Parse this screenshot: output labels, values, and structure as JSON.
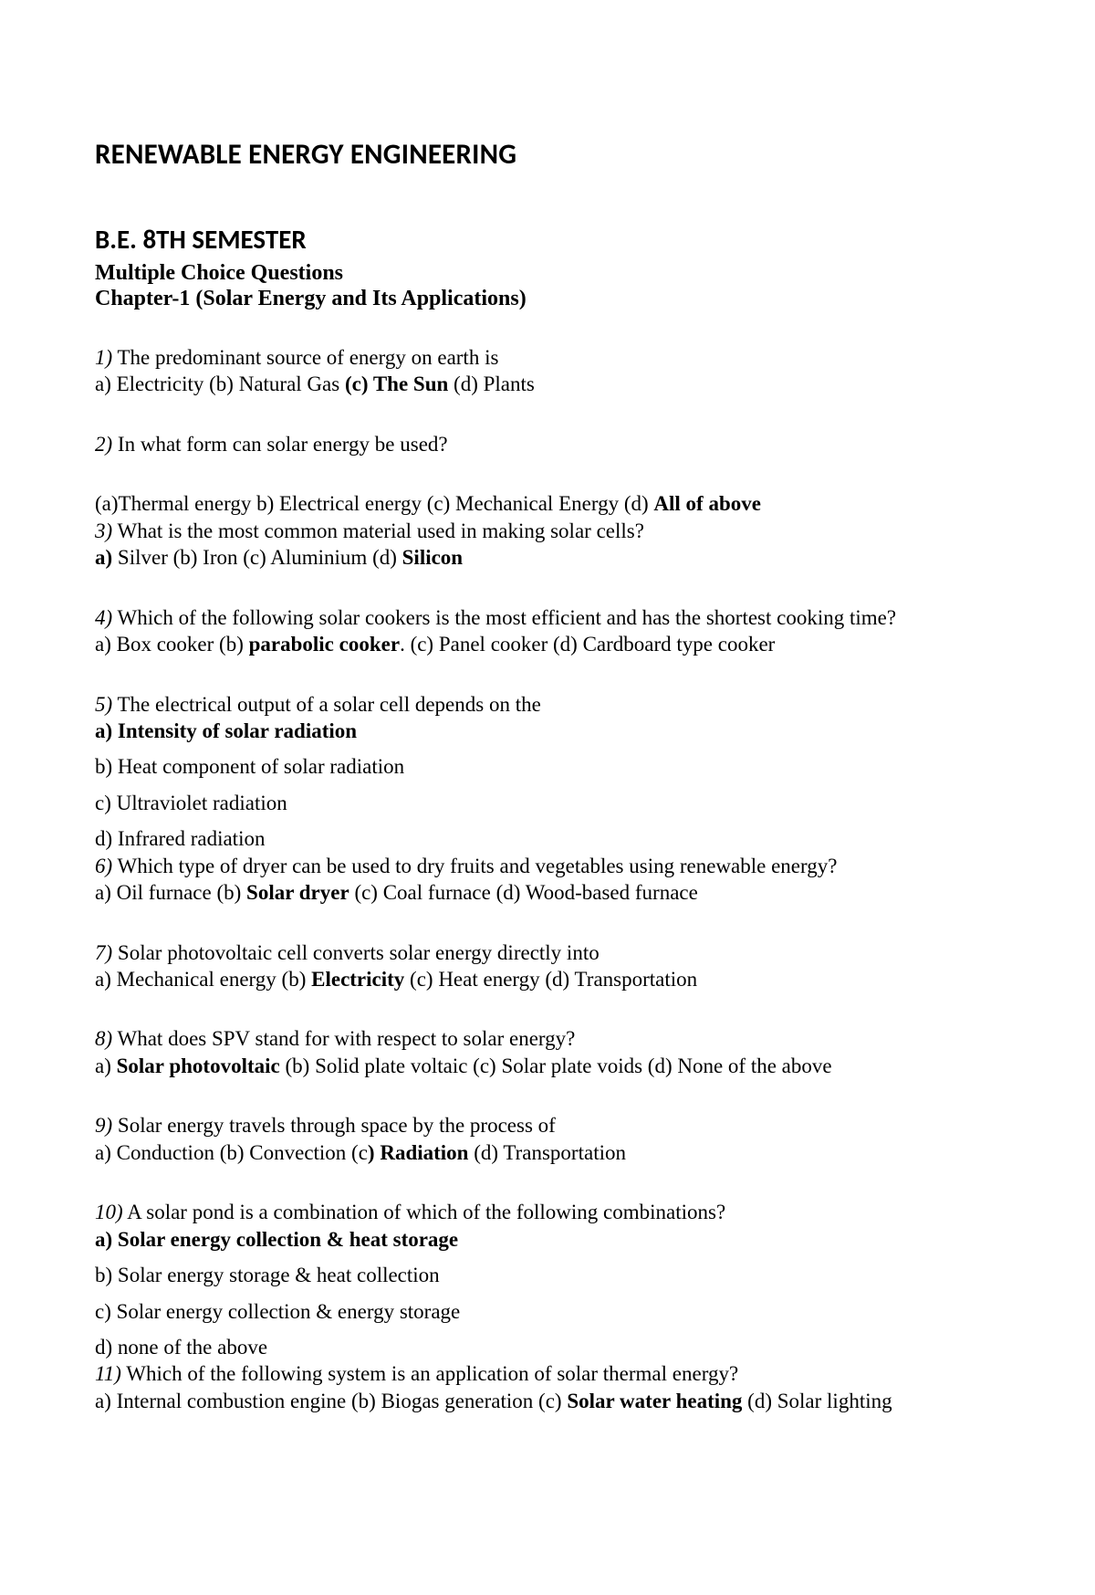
{
  "title": "RENEWABLE ENERGY ENGINEERING",
  "subtitle": "B.E. 8TH SEMESTER",
  "mcq_heading": "Multiple Choice Questions",
  "chapter": "Chapter-1 (Solar Energy and Its Applications)",
  "q1": {
    "num": "1)",
    "text": " The predominant source of energy on earth is",
    "opts_pre": "a) Electricity (b) Natural Gas ",
    "opts_ans": "(c) The Sun",
    "opts_post": " (d) Plants"
  },
  "q2": {
    "num": "2)",
    "text": " In what form can solar energy be used?",
    "opts_pre": "(a)Thermal energy b) Electrical energy (c) Mechanical Energy (d) ",
    "opts_ans": "All of above"
  },
  "q3": {
    "num": "3)",
    "text": " What is the most common material used in making solar cells?",
    "a_label": "a)",
    "opts_mid": " Silver (b) Iron (c) Aluminium (d) ",
    "opts_ans": "Silicon"
  },
  "q4": {
    "num": "4)",
    "text": " Which of the following solar cookers is the most efficient and has the shortest cooking time?",
    "opts_pre": "a) Box cooker (b) ",
    "opts_ans": "parabolic cooker",
    "opts_post": ". (c) Panel cooker (d) Cardboard type cooker"
  },
  "q5": {
    "num": "5)",
    "text": " The electrical output of a solar cell depends on the",
    "a": "a) Intensity of solar radiation",
    "b": "b) Heat component of solar radiation",
    "c": "c) Ultraviolet radiation",
    "d": "d) Infrared radiation"
  },
  "q6": {
    "num": "6)",
    "text": " Which type of dryer can be used to dry fruits and vegetables using renewable energy?",
    "opts_pre": "a) Oil furnace (b) ",
    "opts_ans": "Solar dryer",
    "opts_post": " (c) Coal furnace (d) Wood-based furnace"
  },
  "q7": {
    "num": "7)",
    "text": " Solar photovoltaic cell converts solar energy directly into",
    "opts_pre": "a) Mechanical energy (b) ",
    "opts_ans": "Electricity",
    "opts_post": " (c) Heat energy (d) Transportation"
  },
  "q8": {
    "num": "8)",
    "text": " What does SPV stand for with respect to solar energy?",
    "opts_pre": "a) ",
    "opts_ans": "Solar photovoltaic",
    "opts_post": " (b) Solid plate voltaic (c) Solar plate voids (d) None of the above"
  },
  "q9": {
    "num": "9)",
    "text": " Solar energy travels through space by the process of",
    "opts_pre": "a) Conduction (b) Convection (c",
    "opts_ans": ") Radiation",
    "opts_post": " (d) Transportation"
  },
  "q10": {
    "num": "10)",
    "text": " A solar pond is a combination of which of the following combinations?",
    "a": "a) Solar energy collection & heat storage",
    "b": "b) Solar energy storage & heat collection",
    "c": "c) Solar energy collection & energy storage",
    "d": "d) none of the above"
  },
  "q11": {
    "num": "11)",
    "text": " Which of the following system is an application of solar thermal energy?",
    "opts_pre": "a) Internal combustion engine (b) Biogas generation (c) ",
    "opts_ans": "Solar water heating",
    "opts_post": " (d) Solar lighting"
  }
}
